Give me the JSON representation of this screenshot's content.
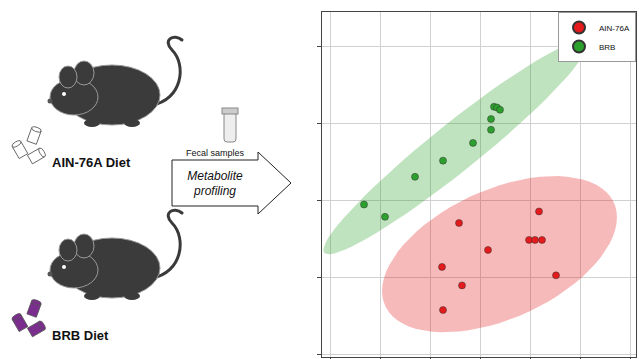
{
  "diagram": {
    "groups": [
      {
        "label": "AIN-76A Diet",
        "pellet_color": "#ffffff"
      },
      {
        "label": "BRB Diet",
        "pellet_color": "#7b2d8e"
      }
    ],
    "arrow": {
      "top_label": "Fecal samples",
      "label": "Metabolite profiling"
    }
  },
  "chart_data": {
    "type": "scatter",
    "series": [
      {
        "name": "AIN-76A",
        "color": "#e41a1c",
        "x": [
          2.58,
          4.18,
          2.24,
          3.16,
          3.98,
          4.1,
          4.24,
          2.64,
          4.52,
          2.26
        ],
        "values": [
          1.71,
          1.86,
          1.14,
          1.36,
          1.49,
          1.49,
          1.49,
          0.9,
          1.03,
          0.58
        ]
      },
      {
        "name": "BRB",
        "color": "#2ca02c",
        "x": [
          0.68,
          1.1,
          1.7,
          2.26,
          2.86,
          3.22,
          3.22,
          3.28,
          3.34,
          3.4
        ],
        "values": [
          1.95,
          1.79,
          2.31,
          2.52,
          2.75,
          2.92,
          3.06,
          3.22,
          3.21,
          3.18
        ]
      }
    ],
    "xlim": [
      -0.16,
      6.12
    ],
    "ylim": [
      -0.03,
      4.45
    ],
    "xticks": [
      0,
      1,
      2,
      3,
      4,
      5,
      6
    ],
    "yticks": [
      0,
      1,
      2,
      3,
      4
    ],
    "grid": true,
    "legend": "upper right",
    "tick_labels": false,
    "marker": "circle"
  }
}
